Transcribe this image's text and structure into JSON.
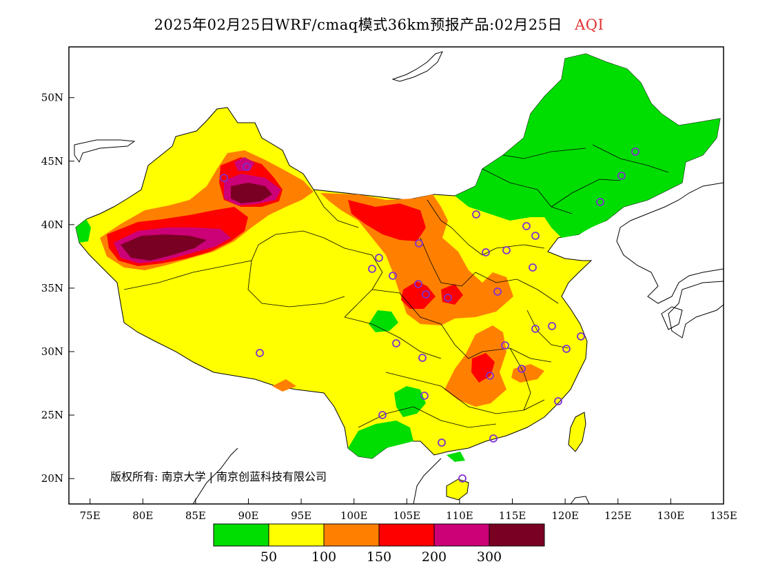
{
  "title": {
    "main": "2025年02月25日WRF/cmaq模式36km预报产品:02月25日",
    "variable": "AQI",
    "variable_color": "#e03030"
  },
  "axes": {
    "lon_range": [
      73,
      135
    ],
    "lat_range": [
      18,
      54
    ],
    "lon_ticks": [
      "75E",
      "80E",
      "85E",
      "90E",
      "95E",
      "100E",
      "105E",
      "110E",
      "115E",
      "120E",
      "125E",
      "130E",
      "135E"
    ],
    "lat_ticks": [
      "20N",
      "25N",
      "30N",
      "35N",
      "40N",
      "45N",
      "50N"
    ]
  },
  "copyright": "版权所有: 南京大学 | 南京创蓝科技有限公司",
  "legend": {
    "colors": [
      "#00dd00",
      "#ffff00",
      "#ff8000",
      "#ff0000",
      "#cc0077",
      "#7a0023"
    ],
    "labels": [
      "50",
      "100",
      "150",
      "200",
      "300"
    ]
  },
  "colors": {
    "good": "#00dd00",
    "moderate": "#ffff00",
    "usg": "#ff8000",
    "unhealthy": "#ff0000",
    "very_unhealthy": "#cc0077",
    "hazardous": "#7a0023",
    "station": "#8030d0"
  }
}
